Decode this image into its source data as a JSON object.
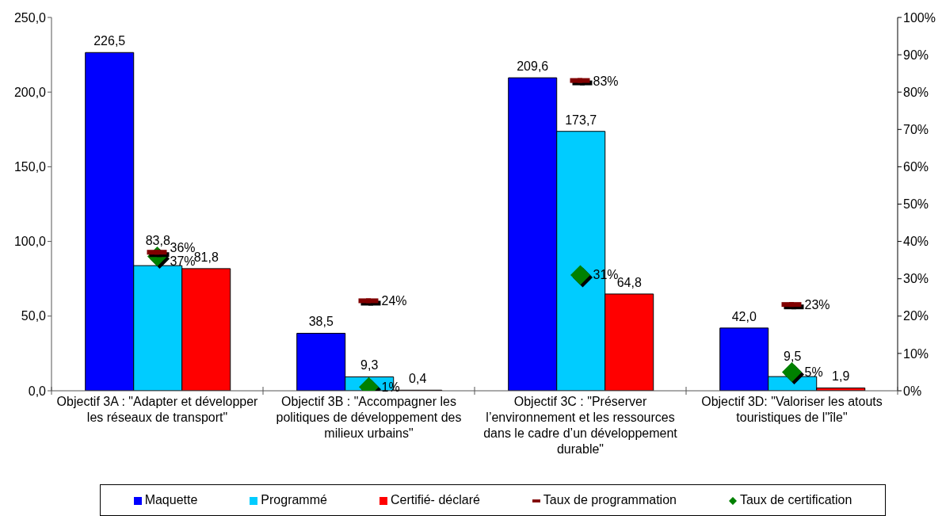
{
  "chart_data": {
    "type": "bar",
    "categories": [
      "Objectif 3A : \"Adapter et développer les réseaux de transport\"",
      "Objectif 3B : \"Accompagner les politiques de développement des milieux urbains\"",
      "Objectif 3C : \"Préserver l’environnement et les ressources dans le cadre d’un développement durable\"",
      "Objectif 3D: \"Valoriser les atouts touristiques de l\"île\""
    ],
    "series": [
      {
        "name": "Maquette",
        "color": "#0000ff",
        "values": [
          226.5,
          38.5,
          209.6,
          42.0
        ],
        "value_labels": [
          "226,5",
          "38,5",
          "209,6",
          "42,0"
        ]
      },
      {
        "name": "Programmé",
        "color": "#00ccff",
        "values": [
          83.8,
          9.3,
          173.7,
          9.5
        ],
        "value_labels": [
          "83,8",
          "9,3",
          "173,7",
          "9,5"
        ]
      },
      {
        "name": "Certifié- déclaré",
        "color": "#ff0000",
        "values": [
          81.8,
          0.4,
          64.8,
          1.9
        ],
        "value_labels": [
          "81,8",
          "0,4",
          "64,8",
          "1,9"
        ]
      },
      {
        "name": "Taux de programmation",
        "type": "scatter",
        "axis": "y2",
        "color": "#800000",
        "values": [
          37,
          24,
          83,
          23
        ],
        "value_labels": [
          "37%",
          "24%",
          "83%",
          "23%"
        ]
      },
      {
        "name": "Taux de certification",
        "type": "scatter",
        "axis": "y2",
        "color": "#008000",
        "marker": "diamond",
        "values": [
          36,
          1,
          31,
          5
        ],
        "value_labels": [
          "36%",
          "1%",
          "31%",
          "5%"
        ]
      }
    ],
    "ylim": [
      0,
      250
    ],
    "yticks": [
      {
        "value": 0,
        "label": "0,0"
      },
      {
        "value": 50,
        "label": "50,0"
      },
      {
        "value": 100,
        "label": "100,0"
      },
      {
        "value": 150,
        "label": "150,0"
      },
      {
        "value": 200,
        "label": "200,0"
      },
      {
        "value": 250,
        "label": "250,0"
      }
    ],
    "y2lim": [
      0,
      100
    ],
    "y2ticks": [
      {
        "value": 0,
        "label": "0%"
      },
      {
        "value": 10,
        "label": "10%"
      },
      {
        "value": 20,
        "label": "20%"
      },
      {
        "value": 30,
        "label": "30%"
      },
      {
        "value": 40,
        "label": "40%"
      },
      {
        "value": 50,
        "label": "50%"
      },
      {
        "value": 60,
        "label": "60%"
      },
      {
        "value": 70,
        "label": "70%"
      },
      {
        "value": 80,
        "label": "80%"
      },
      {
        "value": 90,
        "label": "90%"
      },
      {
        "value": 100,
        "label": "100%"
      }
    ],
    "legend": "bottom"
  }
}
